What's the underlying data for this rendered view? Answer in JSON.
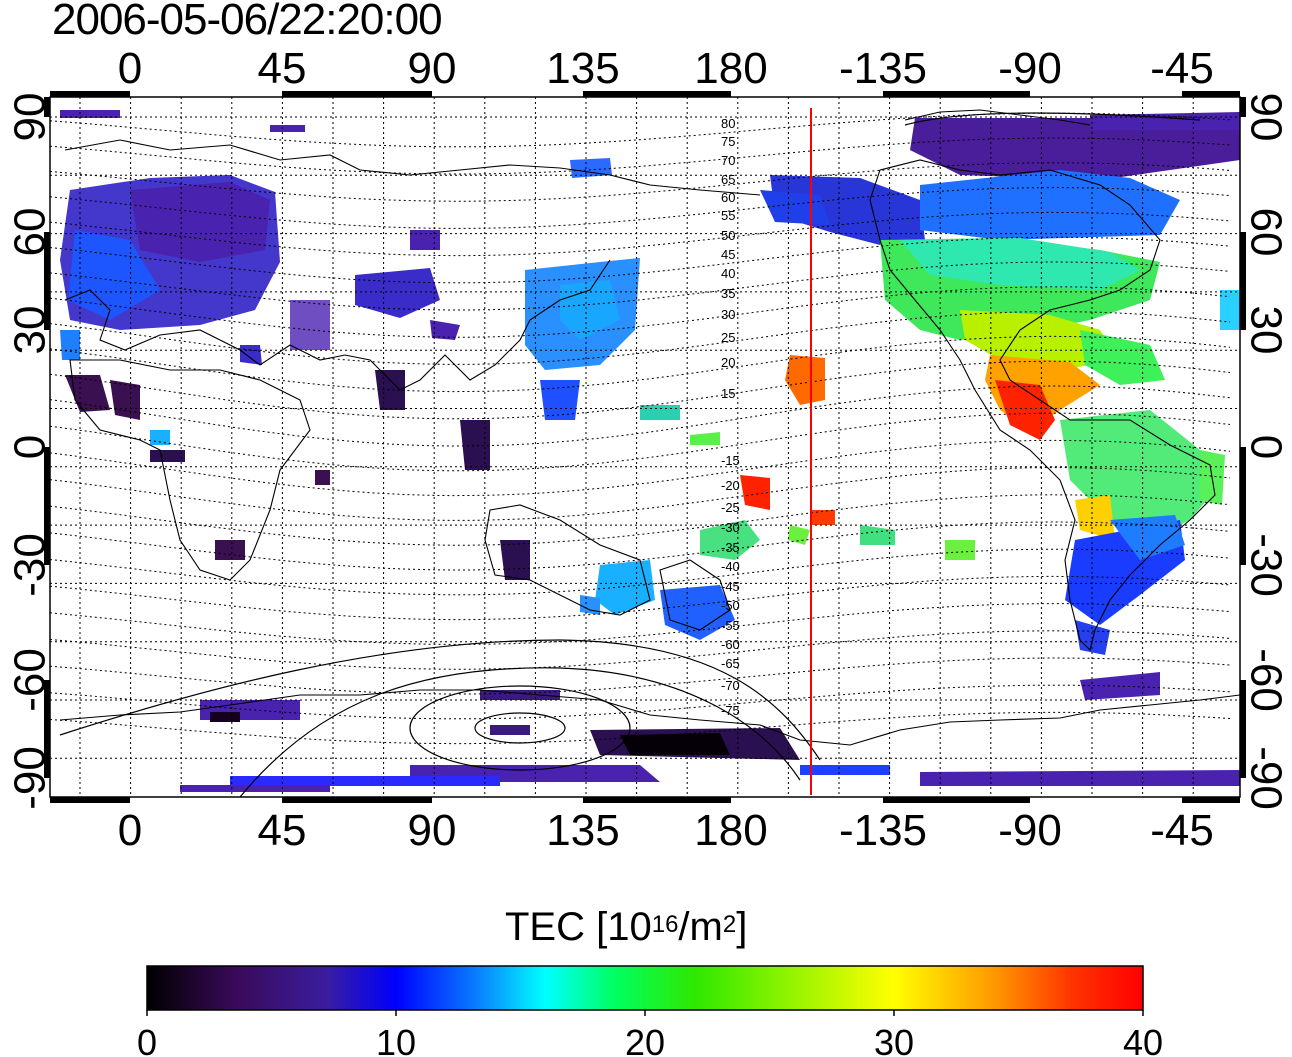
{
  "title": "2006-05-06/22:20:00",
  "map": {
    "lon_ticks_top": [
      "0",
      "45",
      "90",
      "135",
      "180",
      "-135",
      "-90",
      "-45"
    ],
    "lon_ticks_bottom": [
      "0",
      "45",
      "90",
      "135",
      "180",
      "-135",
      "-90",
      "-45"
    ],
    "lat_ticks_left": [
      "90",
      "60",
      "30",
      "0",
      "-30",
      "-60",
      "-90"
    ],
    "lat_ticks_right": [
      "90",
      "60",
      "30",
      "0",
      "-30",
      "-60",
      "-90"
    ],
    "magnetic_latitude_labels_north": [
      "80",
      "75",
      "70",
      "65",
      "60",
      "55",
      "50",
      "45",
      "40",
      "35",
      "30",
      "25",
      "20",
      "15"
    ],
    "magnetic_latitude_labels_south": [
      "-15",
      "-20",
      "-25",
      "-30",
      "-35",
      "-40",
      "-45",
      "-50",
      "-55",
      "-60",
      "-65",
      "-70",
      "-75"
    ],
    "colors": {
      "frame": "#000000",
      "grid": "#000000",
      "marker_line": "#ff0000"
    }
  },
  "colorbar": {
    "label_main": "TEC  [10",
    "label_exp1": "16",
    "label_mid": "/m",
    "label_exp2": "2",
    "label_end": "]",
    "ticks": [
      "0",
      "10",
      "20",
      "30",
      "40"
    ],
    "range": [
      0,
      40
    ],
    "colormap": [
      "#000000",
      "#3a0a5a",
      "#3a1d9e",
      "#0000ff",
      "#0a7cff",
      "#00ffff",
      "#00ff60",
      "#2ee800",
      "#ffff00",
      "#ff9900",
      "#ff3300",
      "#ff0000"
    ]
  }
}
